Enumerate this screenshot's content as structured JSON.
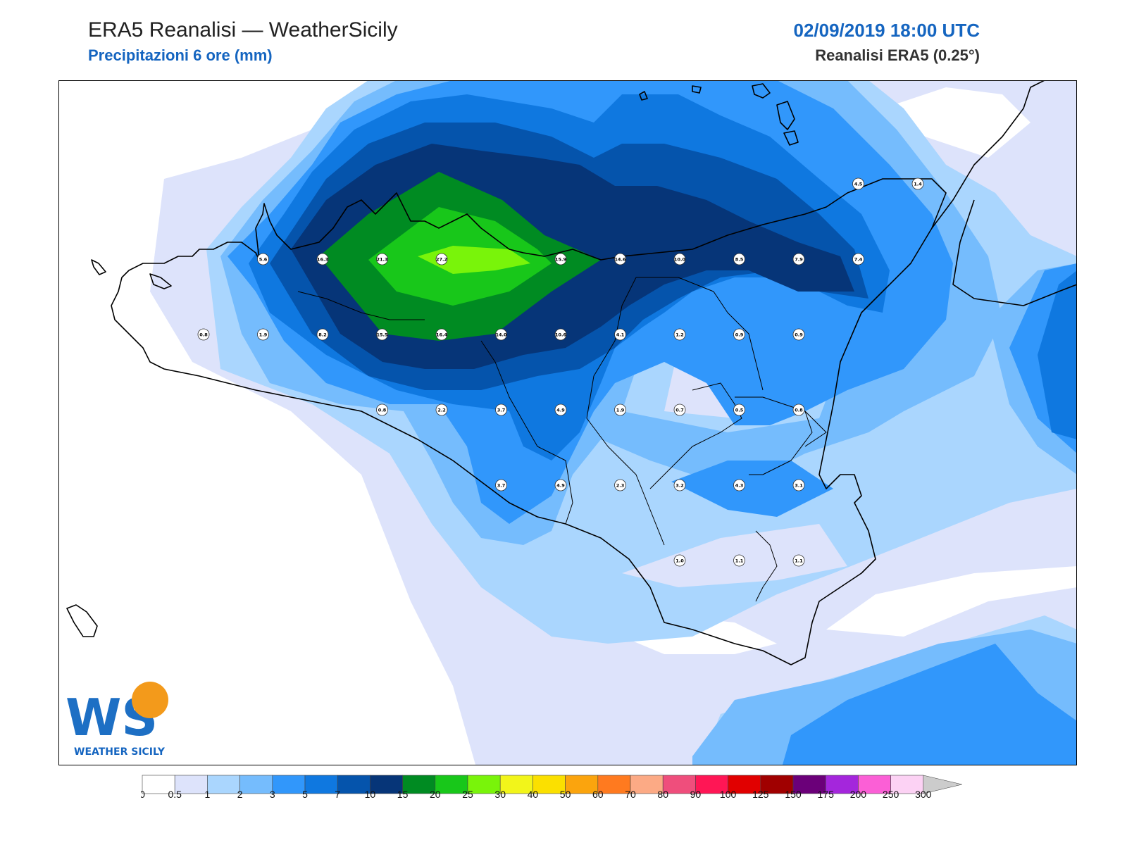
{
  "header": {
    "title": "ERA5 Reanalisi — WeatherSicily",
    "subtitle": "Precipitazioni 6 ore (mm)",
    "datetime": "02/09/2019 18:00 UTC",
    "source": "Reanalisi ERA5 (0.25°)"
  },
  "logo": {
    "letters": "WS",
    "text": "WEATHER SICILY"
  },
  "stations": [
    {
      "label": "5.6",
      "col": 1,
      "row": 1
    },
    {
      "label": "16.3",
      "col": 2,
      "row": 1
    },
    {
      "label": "21.3",
      "col": 3,
      "row": 1
    },
    {
      "label": "27.2",
      "col": 4,
      "row": 1
    },
    {
      "label": "15.9",
      "col": 6,
      "row": 1
    },
    {
      "label": "14.6",
      "col": 7,
      "row": 1
    },
    {
      "label": "10.0",
      "col": 8,
      "row": 1
    },
    {
      "label": "8.5",
      "col": 9,
      "row": 1
    },
    {
      "label": "7.9",
      "col": 10,
      "row": 1
    },
    {
      "label": "7.4",
      "col": 11,
      "row": 1
    },
    {
      "label": "4.5",
      "col": 11,
      "row": 0
    },
    {
      "label": "1.4",
      "col": 12,
      "row": 0
    },
    {
      "label": "0.8",
      "col": 0,
      "row": 2
    },
    {
      "label": "1.9",
      "col": 1,
      "row": 2
    },
    {
      "label": "8.2",
      "col": 2,
      "row": 2
    },
    {
      "label": "15.5",
      "col": 3,
      "row": 2
    },
    {
      "label": "16.4",
      "col": 4,
      "row": 2
    },
    {
      "label": "14.0",
      "col": 5,
      "row": 2
    },
    {
      "label": "10.6",
      "col": 6,
      "row": 2
    },
    {
      "label": "4.1",
      "col": 7,
      "row": 2
    },
    {
      "label": "1.2",
      "col": 8,
      "row": 2
    },
    {
      "label": "0.9",
      "col": 9,
      "row": 2
    },
    {
      "label": "0.9",
      "col": 10,
      "row": 2
    },
    {
      "label": "0.8",
      "col": 3,
      "row": 3
    },
    {
      "label": "2.2",
      "col": 4,
      "row": 3
    },
    {
      "label": "3.7",
      "col": 5,
      "row": 3
    },
    {
      "label": "4.9",
      "col": 6,
      "row": 3
    },
    {
      "label": "1.9",
      "col": 7,
      "row": 3
    },
    {
      "label": "0.7",
      "col": 8,
      "row": 3
    },
    {
      "label": "0.5",
      "col": 9,
      "row": 3
    },
    {
      "label": "0.8",
      "col": 10,
      "row": 3
    },
    {
      "label": "3.7",
      "col": 5,
      "row": 4
    },
    {
      "label": "4.9",
      "col": 6,
      "row": 4
    },
    {
      "label": "2.3",
      "col": 7,
      "row": 4
    },
    {
      "label": "3.2",
      "col": 8,
      "row": 4
    },
    {
      "label": "4.3",
      "col": 9,
      "row": 4
    },
    {
      "label": "3.1",
      "col": 10,
      "row": 4
    },
    {
      "label": "1.0",
      "col": 8,
      "row": 5
    },
    {
      "label": "1.1",
      "col": 9,
      "row": 5
    },
    {
      "label": "1.1",
      "col": 10,
      "row": 5
    }
  ],
  "colorbar": {
    "ticks": [
      "0",
      "0.5",
      "1",
      "2",
      "3",
      "5",
      "7",
      "10",
      "15",
      "20",
      "25",
      "30",
      "40",
      "50",
      "60",
      "70",
      "80",
      "90",
      "100",
      "125",
      "150",
      "175",
      "200",
      "250",
      "300"
    ],
    "colors": [
      "#ffffff",
      "#dde3fb",
      "#aad6fe",
      "#75bcfd",
      "#3197fb",
      "#0f78e0",
      "#0554ac",
      "#063578",
      "#008b22",
      "#18c71a",
      "#79f40a",
      "#f2f51a",
      "#fbe000",
      "#fba40d",
      "#ff7a1f",
      "#fcaa85",
      "#ef4e7c",
      "#ff1655",
      "#e10000",
      "#a00000",
      "#6b0079",
      "#a426dc",
      "#fb5fd6",
      "#fcd2f4"
    ],
    "extend_color": "#cccccc"
  }
}
